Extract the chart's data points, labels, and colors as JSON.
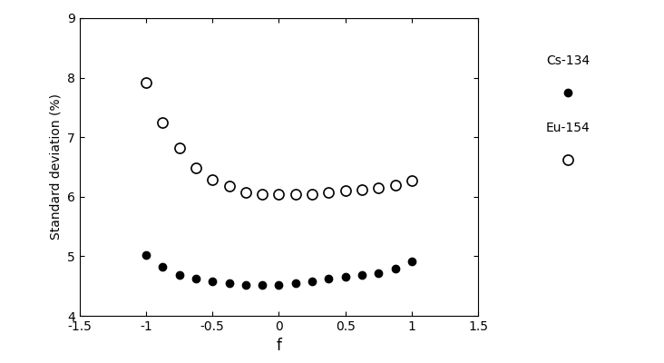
{
  "cs134_x": [
    -1.0,
    -0.875,
    -0.75,
    -0.625,
    -0.5,
    -0.375,
    -0.25,
    -0.125,
    0.0,
    0.125,
    0.25,
    0.375,
    0.5,
    0.625,
    0.75,
    0.875,
    1.0
  ],
  "cs134_y": [
    5.02,
    4.82,
    4.68,
    4.62,
    4.58,
    4.55,
    4.52,
    4.52,
    4.52,
    4.55,
    4.58,
    4.62,
    4.65,
    4.68,
    4.72,
    4.8,
    4.92
  ],
  "eu154_x": [
    -1.0,
    -0.875,
    -0.75,
    -0.625,
    -0.5,
    -0.375,
    -0.25,
    -0.125,
    0.0,
    0.125,
    0.25,
    0.375,
    0.5,
    0.625,
    0.75,
    0.875,
    1.0
  ],
  "eu154_y": [
    7.92,
    7.25,
    6.82,
    6.48,
    6.28,
    6.18,
    6.08,
    6.05,
    6.05,
    6.05,
    6.05,
    6.08,
    6.1,
    6.12,
    6.15,
    6.2,
    6.27
  ],
  "xlabel": "f",
  "ylabel": "Standard deviation (%)",
  "xlim": [
    -1.5,
    1.5
  ],
  "ylim": [
    4,
    9
  ],
  "xticks": [
    -1.5,
    -1.0,
    -0.5,
    0.0,
    0.5,
    1.0,
    1.5
  ],
  "yticks": [
    4,
    5,
    6,
    7,
    8,
    9
  ],
  "legend_cs134": "Cs-134",
  "legend_eu154": "Eu-154",
  "markersize_cs134": 6,
  "markersize_eu154": 8,
  "background_color": "#ffffff",
  "figsize": [
    7.32,
    4.0
  ],
  "dpi": 100
}
